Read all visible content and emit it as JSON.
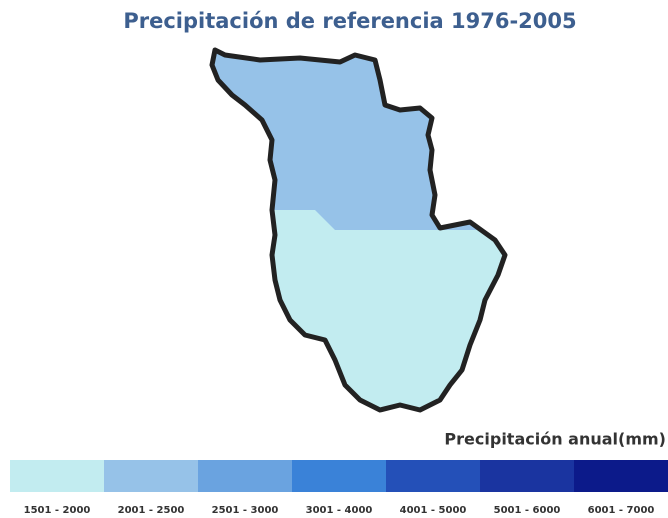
{
  "title": "Precipitación de referencia 1976-2005",
  "legend": {
    "title": "Precipitación anual(mm)",
    "items": [
      {
        "label": "1501 - 2000",
        "color": "#c2ecf0"
      },
      {
        "label": "2001 - 2500",
        "color": "#96c2e8"
      },
      {
        "label": "2501 - 3000",
        "color": "#6aa3e0"
      },
      {
        "label": "3001 - 4000",
        "color": "#3a82d8"
      },
      {
        "label": "4001 - 5000",
        "color": "#2450b8"
      },
      {
        "label": "5001 - 6000",
        "color": "#1a34a0"
      },
      {
        "label": "6001 - 7000",
        "color": "#0c1a8a"
      }
    ]
  }
}
